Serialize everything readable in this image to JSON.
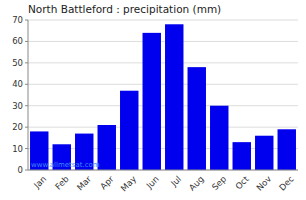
{
  "chart_data": {
    "type": "bar",
    "title": "North Battleford : precipitation (mm)",
    "categories": [
      "Jan",
      "Feb",
      "Mar",
      "Apr",
      "May",
      "Jun",
      "Jul",
      "Aug",
      "Sep",
      "Oct",
      "Nov",
      "Dec"
    ],
    "values": [
      18,
      12,
      17,
      21,
      37,
      64,
      68,
      48,
      30,
      13,
      16,
      19
    ],
    "color": "#0000ee",
    "ylim": [
      0,
      70
    ],
    "yticks": [
      0,
      10,
      20,
      30,
      40,
      50,
      60,
      70
    ],
    "grid": true,
    "annotations": [
      "www.allmetsat.com"
    ]
  }
}
